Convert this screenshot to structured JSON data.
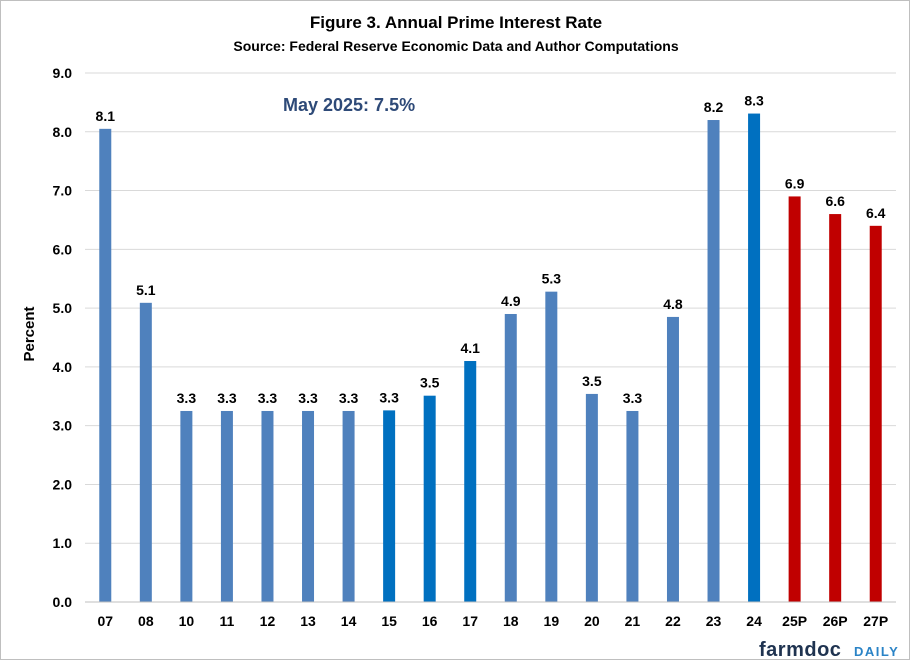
{
  "chart_data": {
    "type": "bar",
    "title": "Figure 3. Annual Prime Interest Rate",
    "subtitle": "Source: Federal Reserve Economic Data and Author Computations",
    "ylabel": "Percent",
    "xlabel": "",
    "ylim": [
      0,
      9
    ],
    "yticks": [
      "0.0",
      "1.0",
      "2.0",
      "3.0",
      "4.0",
      "5.0",
      "6.0",
      "7.0",
      "8.0",
      "9.0"
    ],
    "grid": true,
    "annotation": "May 2025: 7.5%",
    "categories": [
      "07",
      "08",
      "10",
      "11",
      "12",
      "13",
      "14",
      "15",
      "16",
      "17",
      "18",
      "19",
      "20",
      "21",
      "22",
      "23",
      "24",
      "25P",
      "26P",
      "27P"
    ],
    "values": [
      8.05,
      5.09,
      3.25,
      3.25,
      3.25,
      3.25,
      3.25,
      3.26,
      3.51,
      4.1,
      4.9,
      5.28,
      3.54,
      3.25,
      4.85,
      8.2,
      8.31,
      6.9,
      6.6,
      6.4
    ],
    "data_labels": [
      "8.1",
      "5.1",
      "3.3",
      "3.3",
      "3.3",
      "3.3",
      "3.3",
      "3.3",
      "3.5",
      "4.1",
      "4.9",
      "5.3",
      "3.5",
      "3.3",
      "4.8",
      "8.2",
      "8.3",
      "6.9",
      "6.6",
      "6.4"
    ],
    "colors": [
      "#4f81bd",
      "#4f81bd",
      "#4f81bd",
      "#4f81bd",
      "#4f81bd",
      "#4f81bd",
      "#4f81bd",
      "#0070c0",
      "#0070c0",
      "#0070c0",
      "#4f81bd",
      "#4f81bd",
      "#4f81bd",
      "#4f81bd",
      "#4f81bd",
      "#4f81bd",
      "#0070c0",
      "#c00000",
      "#c00000",
      "#c00000"
    ]
  },
  "branding": {
    "name_main": "farmdoc",
    "name_sub": "DAILY"
  }
}
